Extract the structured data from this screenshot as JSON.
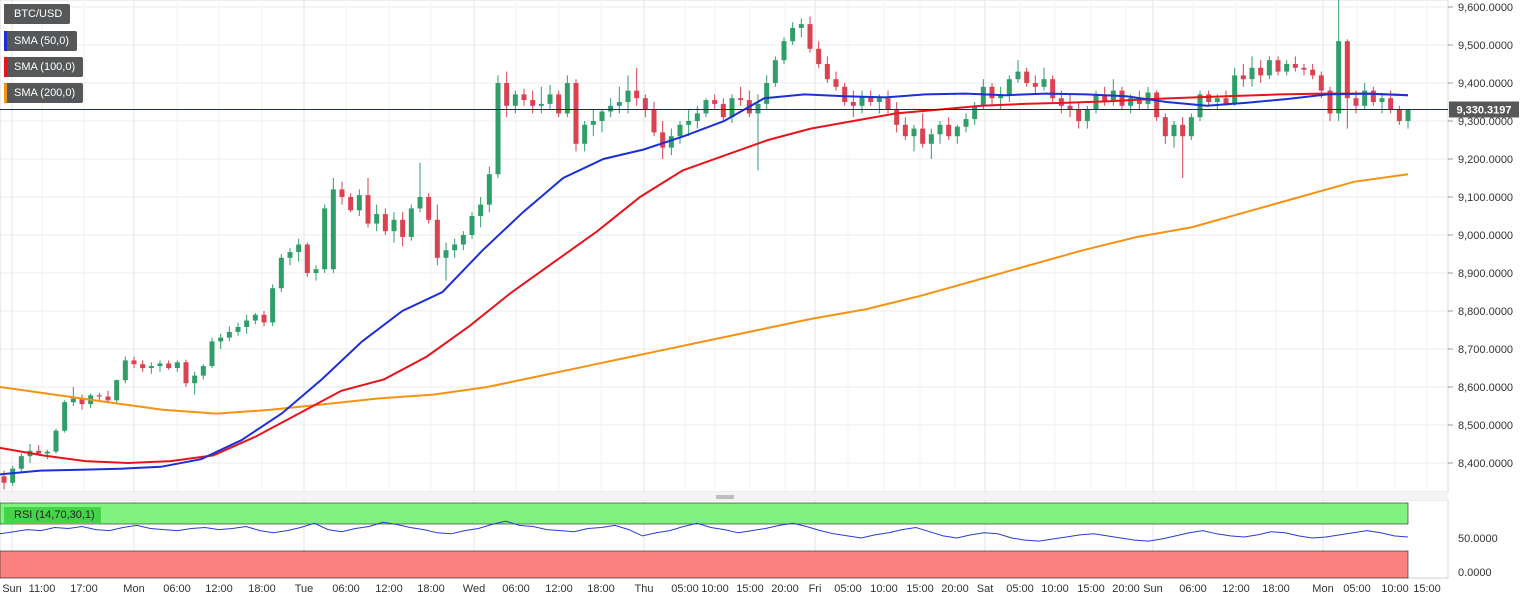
{
  "chart_data": {
    "type": "candlestick",
    "symbol": "BTC/USD",
    "price_axis": {
      "ticks": [
        "9,600.0000",
        "9,500.0000",
        "9,400.0000",
        "9,300.0000",
        "9,200.0000",
        "9,100.0000",
        "9,000.0000",
        "8,900.0000",
        "8,800.0000",
        "8,700.0000",
        "8,600.0000",
        "8,500.0000",
        "8,400.0000"
      ],
      "ylim": [
        8320,
        9620
      ],
      "last_price_label": "9,330.3197",
      "last_price": 9330.3197
    },
    "time_axis": {
      "labels": [
        "Sun",
        "11:00",
        "17:00",
        "Mon",
        "06:00",
        "12:00",
        "18:00",
        "Tue",
        "06:00",
        "12:00",
        "18:00",
        "Wed",
        "06:00",
        "12:00",
        "18:00",
        "Thu",
        "05:00",
        "10:00",
        "15:00",
        "20:00",
        "Fri",
        "05:00",
        "10:00",
        "15:00",
        "20:00",
        "Sat",
        "05:00",
        "10:00",
        "15:00",
        "20:00",
        "Sun",
        "06:00",
        "12:00",
        "18:00",
        "Mon",
        "05:00",
        "10:00",
        "15:00"
      ]
    },
    "day_markers": [
      "Sun",
      "Mon",
      "Tue",
      "Wed",
      "Thu",
      "Fri",
      "Sat",
      "Sun",
      "Mon"
    ],
    "indicators": [
      {
        "name": "SMA (50,0)",
        "color": "#1d2fd6"
      },
      {
        "name": "SMA (100,0)",
        "color": "#e8141c"
      },
      {
        "name": "SMA (200,0)",
        "color": "#f79313"
      }
    ],
    "sma50": [
      8370,
      8380,
      8382,
      8385,
      8390,
      8410,
      8460,
      8530,
      8620,
      8720,
      8800,
      8850,
      8960,
      9060,
      9150,
      9200,
      9225,
      9260,
      9300,
      9360,
      9370,
      9365,
      9362,
      9370,
      9372,
      9368,
      9372,
      9370,
      9365,
      9350,
      9340,
      9348,
      9358,
      9370,
      9372,
      9368
    ],
    "sma100": [
      8440,
      8420,
      8405,
      8400,
      8405,
      8420,
      8470,
      8530,
      8590,
      8620,
      8680,
      8760,
      8850,
      8930,
      9010,
      9100,
      9170,
      9210,
      9250,
      9280,
      9300,
      9320,
      9330,
      9340,
      9345,
      9348,
      9352,
      9358,
      9362,
      9366,
      9370,
      9372,
      9372,
      9368
    ],
    "sma200": [
      8600,
      8580,
      8560,
      8540,
      8530,
      8540,
      8555,
      8570,
      8580,
      8600,
      8630,
      8660,
      8690,
      8720,
      8750,
      8780,
      8805,
      8840,
      8880,
      8920,
      8960,
      8995,
      9020,
      9060,
      9100,
      9140,
      9160
    ],
    "candles": [
      [
        8365,
        8380,
        8330,
        8348
      ],
      [
        8348,
        8392,
        8340,
        8385
      ],
      [
        8385,
        8425,
        8375,
        8418
      ],
      [
        8418,
        8450,
        8400,
        8432
      ],
      [
        8432,
        8447,
        8420,
        8425
      ],
      [
        8425,
        8435,
        8410,
        8430
      ],
      [
        8430,
        8490,
        8425,
        8485
      ],
      [
        8485,
        8565,
        8480,
        8560
      ],
      [
        8560,
        8600,
        8550,
        8570
      ],
      [
        8570,
        8580,
        8540,
        8555
      ],
      [
        8555,
        8583,
        8545,
        8578
      ],
      [
        8578,
        8585,
        8560,
        8575
      ],
      [
        8575,
        8590,
        8560,
        8565
      ],
      [
        8565,
        8620,
        8555,
        8618
      ],
      [
        8618,
        8680,
        8610,
        8670
      ],
      [
        8670,
        8680,
        8650,
        8660
      ],
      [
        8660,
        8670,
        8640,
        8650
      ],
      [
        8650,
        8665,
        8635,
        8655
      ],
      [
        8655,
        8670,
        8640,
        8662
      ],
      [
        8662,
        8670,
        8645,
        8650
      ],
      [
        8650,
        8670,
        8640,
        8665
      ],
      [
        8665,
        8672,
        8600,
        8610
      ],
      [
        8610,
        8640,
        8580,
        8630
      ],
      [
        8630,
        8660,
        8620,
        8655
      ],
      [
        8655,
        8730,
        8650,
        8720
      ],
      [
        8720,
        8740,
        8700,
        8730
      ],
      [
        8730,
        8760,
        8720,
        8745
      ],
      [
        8745,
        8770,
        8735,
        8758
      ],
      [
        8758,
        8790,
        8740,
        8775
      ],
      [
        8775,
        8795,
        8765,
        8790
      ],
      [
        8790,
        8800,
        8760,
        8770
      ],
      [
        8770,
        8870,
        8760,
        8860
      ],
      [
        8860,
        8950,
        8850,
        8940
      ],
      [
        8940,
        8965,
        8920,
        8955
      ],
      [
        8955,
        8990,
        8930,
        8975
      ],
      [
        8975,
        8980,
        8890,
        8900
      ],
      [
        8900,
        8920,
        8880,
        8910
      ],
      [
        8910,
        9080,
        8900,
        9070
      ],
      [
        8910,
        9150,
        8900,
        9120
      ],
      [
        9120,
        9140,
        9080,
        9100
      ],
      [
        9100,
        9110,
        9060,
        9065
      ],
      [
        9065,
        9120,
        9050,
        9105
      ],
      [
        9105,
        9150,
        9020,
        9030
      ],
      [
        9030,
        9080,
        9010,
        9055
      ],
      [
        9055,
        9070,
        9000,
        9010
      ],
      [
        9010,
        9060,
        8980,
        9040
      ],
      [
        9040,
        9060,
        8970,
        8995
      ],
      [
        8995,
        9080,
        8985,
        9070
      ],
      [
        9070,
        9190,
        9060,
        9100
      ],
      [
        9100,
        9110,
        9030,
        9040
      ],
      [
        9040,
        9080,
        8920,
        8940
      ],
      [
        8940,
        8980,
        8880,
        8960
      ],
      [
        8960,
        8990,
        8940,
        8975
      ],
      [
        8975,
        9010,
        8960,
        9000
      ],
      [
        9000,
        9060,
        8990,
        9050
      ],
      [
        9050,
        9100,
        9020,
        9080
      ],
      [
        9080,
        9180,
        9060,
        9160
      ],
      [
        9160,
        9420,
        9150,
        9400
      ],
      [
        9400,
        9430,
        9310,
        9340
      ],
      [
        9340,
        9380,
        9320,
        9370
      ],
      [
        9370,
        9385,
        9340,
        9355
      ],
      [
        9355,
        9380,
        9320,
        9340
      ],
      [
        9340,
        9390,
        9320,
        9345
      ],
      [
        9345,
        9395,
        9330,
        9370
      ],
      [
        9370,
        9380,
        9310,
        9320
      ],
      [
        9320,
        9420,
        9310,
        9400
      ],
      [
        9400,
        9410,
        9220,
        9240
      ],
      [
        9240,
        9300,
        9220,
        9290
      ],
      [
        9290,
        9330,
        9260,
        9300
      ],
      [
        9300,
        9330,
        9270,
        9325
      ],
      [
        9325,
        9360,
        9310,
        9340
      ],
      [
        9340,
        9390,
        9320,
        9350
      ],
      [
        9350,
        9420,
        9320,
        9380
      ],
      [
        9380,
        9440,
        9340,
        9360
      ],
      [
        9360,
        9370,
        9310,
        9330
      ],
      [
        9330,
        9350,
        9260,
        9270
      ],
      [
        9270,
        9300,
        9200,
        9230
      ],
      [
        9230,
        9280,
        9210,
        9260
      ],
      [
        9260,
        9300,
        9240,
        9290
      ],
      [
        9290,
        9330,
        9260,
        9300
      ],
      [
        9300,
        9340,
        9280,
        9320
      ],
      [
        9320,
        9360,
        9310,
        9355
      ],
      [
        9355,
        9370,
        9330,
        9345
      ],
      [
        9345,
        9360,
        9300,
        9310
      ],
      [
        9310,
        9370,
        9295,
        9360
      ],
      [
        9360,
        9390,
        9340,
        9355
      ],
      [
        9355,
        9380,
        9310,
        9320
      ],
      [
        9320,
        9370,
        9170,
        9345
      ],
      [
        9345,
        9420,
        9330,
        9400
      ],
      [
        9400,
        9470,
        9390,
        9460
      ],
      [
        9460,
        9520,
        9450,
        9510
      ],
      [
        9510,
        9560,
        9500,
        9545
      ],
      [
        9545,
        9570,
        9520,
        9555
      ],
      [
        9555,
        9575,
        9480,
        9490
      ],
      [
        9490,
        9510,
        9440,
        9450
      ],
      [
        9450,
        9470,
        9400,
        9410
      ],
      [
        9410,
        9430,
        9380,
        9390
      ],
      [
        9390,
        9400,
        9340,
        9350
      ],
      [
        9350,
        9380,
        9310,
        9340
      ],
      [
        9340,
        9380,
        9320,
        9365
      ],
      [
        9365,
        9380,
        9340,
        9350
      ],
      [
        9350,
        9370,
        9320,
        9360
      ],
      [
        9360,
        9380,
        9320,
        9330
      ],
      [
        9330,
        9350,
        9270,
        9290
      ],
      [
        9290,
        9310,
        9250,
        9260
      ],
      [
        9260,
        9290,
        9220,
        9280
      ],
      [
        9280,
        9320,
        9230,
        9240
      ],
      [
        9240,
        9280,
        9200,
        9265
      ],
      [
        9265,
        9300,
        9240,
        9290
      ],
      [
        9290,
        9310,
        9250,
        9260
      ],
      [
        9260,
        9290,
        9240,
        9285
      ],
      [
        9285,
        9320,
        9270,
        9305
      ],
      [
        9305,
        9350,
        9290,
        9340
      ],
      [
        9340,
        9410,
        9330,
        9390
      ],
      [
        9390,
        9400,
        9340,
        9360
      ],
      [
        9360,
        9390,
        9330,
        9370
      ],
      [
        9370,
        9420,
        9350,
        9410
      ],
      [
        9410,
        9460,
        9400,
        9430
      ],
      [
        9430,
        9440,
        9390,
        9400
      ],
      [
        9400,
        9420,
        9370,
        9390
      ],
      [
        9390,
        9440,
        9380,
        9410
      ],
      [
        9410,
        9420,
        9350,
        9360
      ],
      [
        9360,
        9380,
        9320,
        9340
      ],
      [
        9340,
        9370,
        9310,
        9330
      ],
      [
        9330,
        9350,
        9280,
        9300
      ],
      [
        9300,
        9340,
        9280,
        9330
      ],
      [
        9330,
        9380,
        9320,
        9370
      ],
      [
        9370,
        9390,
        9340,
        9350
      ],
      [
        9350,
        9410,
        9340,
        9380
      ],
      [
        9380,
        9390,
        9330,
        9340
      ],
      [
        9340,
        9370,
        9320,
        9360
      ],
      [
        9360,
        9380,
        9330,
        9345
      ],
      [
        9345,
        9390,
        9330,
        9375
      ],
      [
        9375,
        9380,
        9300,
        9310
      ],
      [
        9310,
        9320,
        9240,
        9260
      ],
      [
        9260,
        9300,
        9230,
        9290
      ],
      [
        9290,
        9310,
        9150,
        9260
      ],
      [
        9260,
        9320,
        9250,
        9310
      ],
      [
        9310,
        9380,
        9300,
        9370
      ],
      [
        9370,
        9380,
        9340,
        9350
      ],
      [
        9350,
        9370,
        9330,
        9360
      ],
      [
        9360,
        9380,
        9340,
        9345
      ],
      [
        9345,
        9440,
        9340,
        9420
      ],
      [
        9420,
        9450,
        9390,
        9410
      ],
      [
        9410,
        9470,
        9390,
        9440
      ],
      [
        9440,
        9460,
        9400,
        9420
      ],
      [
        9420,
        9470,
        9410,
        9460
      ],
      [
        9460,
        9470,
        9420,
        9430
      ],
      [
        9430,
        9460,
        9420,
        9450
      ],
      [
        9450,
        9470,
        9430,
        9440
      ],
      [
        9440,
        9450,
        9420,
        9435
      ],
      [
        9435,
        9450,
        9410,
        9420
      ],
      [
        9420,
        9430,
        9360,
        9380
      ],
      [
        9380,
        9390,
        9300,
        9320
      ],
      [
        9320,
        9620,
        9300,
        9510
      ],
      [
        9510,
        9515,
        9280,
        9360
      ],
      [
        9360,
        9380,
        9320,
        9340
      ],
      [
        9340,
        9400,
        9330,
        9380
      ],
      [
        9380,
        9390,
        9340,
        9350
      ],
      [
        9350,
        9370,
        9320,
        9360
      ],
      [
        9360,
        9380,
        9320,
        9330
      ],
      [
        9330,
        9340,
        9290,
        9300
      ],
      [
        9300,
        9330,
        9280,
        9330
      ]
    ],
    "rsi": {
      "label": "RSI (14,70,30,1)",
      "ticks": [
        "50.0000",
        "0.0000"
      ],
      "values": [
        54,
        56,
        58,
        57,
        60,
        59,
        61,
        58,
        57,
        60,
        62,
        59,
        58,
        57,
        59,
        60,
        58,
        59,
        61,
        57,
        55,
        57,
        60,
        64,
        58,
        56,
        59,
        61,
        65,
        63,
        60,
        58,
        55,
        54,
        57,
        59,
        63,
        66,
        62,
        61,
        58,
        57,
        56,
        59,
        60,
        62,
        58,
        52,
        55,
        57,
        61,
        64,
        60,
        58,
        55,
        57,
        59,
        62,
        64,
        61,
        57,
        54,
        52,
        50,
        53,
        55,
        58,
        60,
        56,
        52,
        50,
        53,
        55,
        54,
        50,
        48,
        47,
        49,
        51,
        53,
        54,
        52,
        50,
        48,
        47,
        49,
        52,
        55,
        57,
        54,
        52,
        51,
        53,
        56,
        55,
        52,
        50,
        51,
        53,
        55,
        57,
        55,
        52,
        51
      ]
    }
  }
}
